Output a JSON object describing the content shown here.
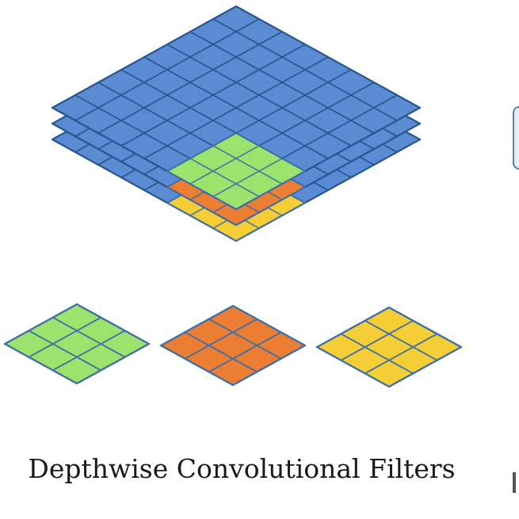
{
  "caption": "Depthwise Convolutional Filters",
  "colors": {
    "input_fill": "#5b8bd3",
    "input_grid": "#27558e",
    "filter_green": "#9be36c",
    "filter_orange": "#ec7e33",
    "filter_yellow": "#f5cd34",
    "filter_grid": "#3f6fa8"
  },
  "input_tensor": {
    "channels": 3,
    "grid_size": 8
  },
  "filters": [
    {
      "color": "green",
      "grid_size": 3
    },
    {
      "color": "orange",
      "grid_size": 3
    },
    {
      "color": "yellow",
      "grid_size": 3
    }
  ]
}
